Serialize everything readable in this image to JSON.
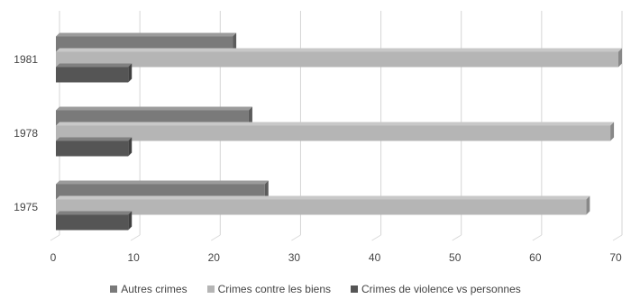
{
  "chart_data": {
    "type": "bar",
    "orientation": "horizontal",
    "style": "3d",
    "categories": [
      "1975",
      "1978",
      "1981"
    ],
    "series": [
      {
        "name": "Autres crimes",
        "values": [
          26,
          24,
          22
        ],
        "color": "#7a7a7a"
      },
      {
        "name": "Crimes contre les biens",
        "values": [
          66,
          69,
          70
        ],
        "color": "#b5b5b5"
      },
      {
        "name": "Crimes de violence vs personnes",
        "values": [
          9,
          9,
          9
        ],
        "color": "#555555"
      }
    ],
    "x_ticks": [
      "0",
      "10",
      "20",
      "30",
      "40",
      "50",
      "60",
      "70"
    ],
    "xlim": [
      0,
      70
    ],
    "grid": true,
    "legend_position": "bottom"
  }
}
